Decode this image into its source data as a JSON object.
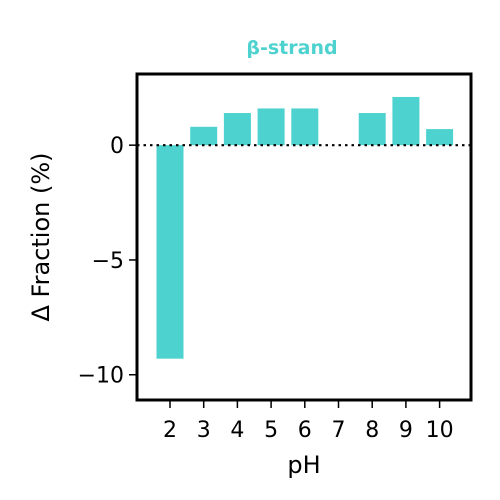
{
  "chart_data": {
    "type": "bar",
    "title": "β-strand",
    "xlabel": "pH",
    "ylabel": "Δ Fraction (%)",
    "categories": [
      "2",
      "3",
      "4",
      "5",
      "6",
      "7",
      "8",
      "9",
      "10"
    ],
    "values": [
      -9.3,
      0.8,
      1.4,
      1.6,
      1.6,
      0,
      1.4,
      2.1,
      0.7
    ],
    "ylim": [
      -11.1,
      3.1
    ],
    "yticks": [
      {
        "value": 0,
        "label": "0"
      },
      {
        "value": -5,
        "label": "−5"
      },
      {
        "value": -10,
        "label": "−10"
      }
    ],
    "bar_color": "#4ed2cf",
    "title_color": "#4ed2cf",
    "zero_line": "dotted",
    "grid": false,
    "legend": "none"
  }
}
